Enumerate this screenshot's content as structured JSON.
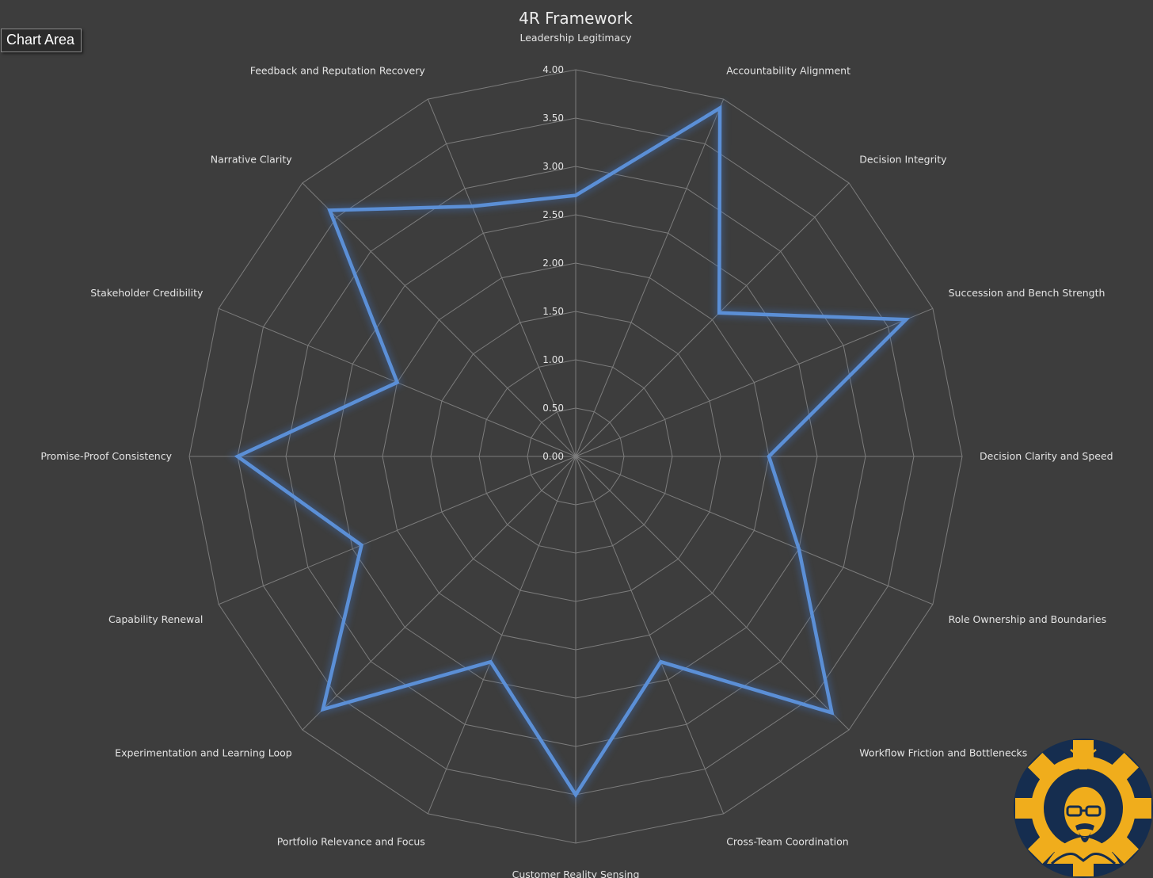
{
  "window": {
    "chart_area_tooltip": "Chart Area"
  },
  "colors": {
    "background": "#3d3d3d",
    "series_line": "#5b8fd6",
    "series_glow": "#3f6fb8",
    "gridline": "#7c7c7c",
    "text": "#e4e4e4",
    "logo_gold": "#f0ad1c",
    "logo_navy": "#152d4f"
  },
  "logo": {
    "icon": "gear-lightbulb-bald-man-glasses-logo"
  },
  "chart_data": {
    "type": "radar",
    "title": "4R Framework",
    "categories": [
      "Leadership Legitimacy",
      "Accountability Alignment",
      "Decision Integrity",
      "Succession and Bench Strength",
      "Decision Clarity and Speed",
      "Role Ownership and Boundaries",
      "Workflow Friction and Bottlenecks",
      "Cross-Team Coordination",
      "Customer Reality Sensing",
      "Portfolio Relevance and Focus",
      "Experimentation and Learning Loop",
      "Capability Renewal",
      "Promise-Proof Consistency",
      "Stakeholder Credibility",
      "Narrative Clarity",
      "Feedback and Reputation Recovery"
    ],
    "series": [
      {
        "values": [
          2.7,
          3.9,
          2.1,
          3.7,
          2.0,
          2.5,
          3.75,
          2.3,
          3.5,
          2.3,
          3.7,
          2.4,
          3.5,
          2.0,
          3.6,
          2.8
        ]
      }
    ],
    "rlim": [
      0,
      4
    ],
    "ticks": [
      "0.00",
      "0.50",
      "1.00",
      "1.50",
      "2.00",
      "2.50",
      "3.00",
      "3.50",
      "4.00"
    ],
    "grid": true,
    "legend": "none"
  }
}
